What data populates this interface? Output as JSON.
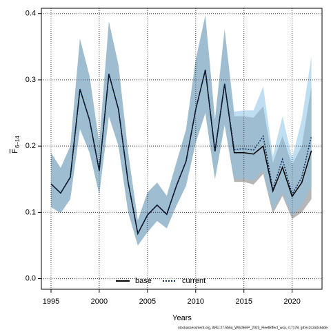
{
  "chart_data": {
    "type": "line",
    "xlabel": "Years",
    "ylabel": "F",
    "ylabel_sub": "6–14",
    "footnote": "stockassessment.org, ARU.27.5b6a_WGDEEP_2023_FleetEffect_wsa, r17178, git:ec2c2a0c6dde",
    "x": [
      1995,
      1996,
      1997,
      1998,
      1999,
      2000,
      2001,
      2002,
      2003,
      2004,
      2005,
      2006,
      2007,
      2008,
      2009,
      2010,
      2011,
      2012,
      2013,
      2014,
      2015,
      2016,
      2017,
      2018,
      2019,
      2020,
      2021,
      2022
    ],
    "series": [
      {
        "name": "base",
        "color": "#000000",
        "band_color": "rgba(110,110,110,0.5)",
        "dash": "solid",
        "values": [
          0.143,
          0.129,
          0.153,
          0.286,
          0.239,
          0.163,
          0.309,
          0.255,
          0.145,
          0.068,
          0.096,
          0.111,
          0.097,
          0.14,
          0.177,
          0.255,
          0.315,
          0.192,
          0.294,
          0.19,
          0.19,
          0.188,
          0.2,
          0.132,
          0.168,
          0.124,
          0.145,
          0.193
        ],
        "lower": [
          0.108,
          0.099,
          0.12,
          0.226,
          0.19,
          0.127,
          0.245,
          0.2,
          0.1,
          0.05,
          0.07,
          0.087,
          0.076,
          0.11,
          0.14,
          0.205,
          0.25,
          0.15,
          0.232,
          0.146,
          0.146,
          0.142,
          0.158,
          0.098,
          0.125,
          0.09,
          0.1,
          0.12
        ],
        "upper": [
          0.19,
          0.167,
          0.2,
          0.362,
          0.305,
          0.205,
          0.388,
          0.322,
          0.19,
          0.088,
          0.13,
          0.145,
          0.125,
          0.175,
          0.225,
          0.33,
          0.397,
          0.24,
          0.376,
          0.245,
          0.245,
          0.243,
          0.26,
          0.175,
          0.215,
          0.172,
          0.2,
          0.29
        ]
      },
      {
        "name": "current",
        "color": "#0a2a5a",
        "band_color": "rgba(140,195,230,0.55)",
        "dash": "dotted",
        "values": [
          0.143,
          0.129,
          0.153,
          0.286,
          0.239,
          0.163,
          0.309,
          0.255,
          0.145,
          0.068,
          0.096,
          0.111,
          0.097,
          0.14,
          0.177,
          0.255,
          0.315,
          0.192,
          0.294,
          0.195,
          0.196,
          0.194,
          0.215,
          0.135,
          0.18,
          0.127,
          0.153,
          0.215
        ],
        "lower": [
          0.108,
          0.099,
          0.12,
          0.226,
          0.19,
          0.127,
          0.245,
          0.2,
          0.1,
          0.05,
          0.07,
          0.087,
          0.076,
          0.11,
          0.14,
          0.205,
          0.25,
          0.15,
          0.232,
          0.15,
          0.15,
          0.148,
          0.163,
          0.103,
          0.13,
          0.095,
          0.11,
          0.14
        ],
        "upper": [
          0.19,
          0.167,
          0.2,
          0.362,
          0.305,
          0.205,
          0.388,
          0.322,
          0.19,
          0.088,
          0.13,
          0.145,
          0.125,
          0.175,
          0.225,
          0.33,
          0.397,
          0.24,
          0.376,
          0.252,
          0.254,
          0.254,
          0.29,
          0.185,
          0.245,
          0.182,
          0.24,
          0.335
        ]
      }
    ],
    "xlim": [
      1994,
      2023.1
    ],
    "ylim": [
      -0.016,
      0.408
    ],
    "xticks": [
      1995,
      2000,
      2005,
      2010,
      2015,
      2020
    ],
    "yticks": [
      {
        "value": 0,
        "label": "0.0"
      },
      0.1,
      0.2,
      0.3,
      0.4
    ],
    "grid": true,
    "legend": "bottom"
  }
}
